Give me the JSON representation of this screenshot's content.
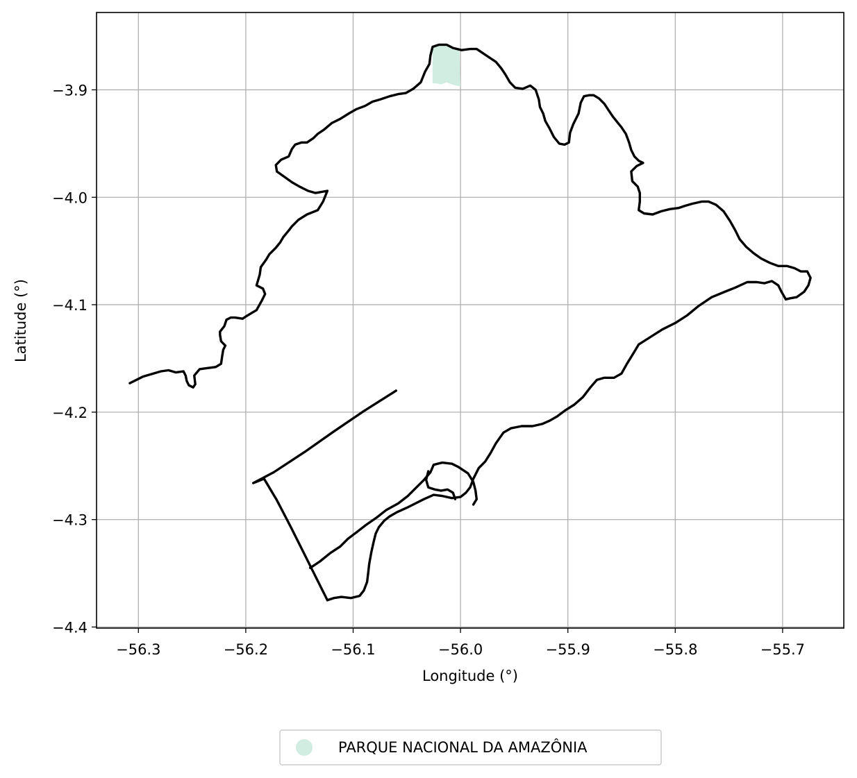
{
  "chart_data": {
    "type": "map",
    "xlabel": "Longitude (°)",
    "ylabel": "Latitude (°)",
    "xlim": [
      -56.339,
      -55.643
    ],
    "ylim": [
      -4.401,
      -3.828
    ],
    "xticks": [
      -56.3,
      -56.2,
      -56.1,
      -56.0,
      -55.9,
      -55.8,
      -55.7
    ],
    "xtick_labels": [
      "−56.3",
      "−56.2",
      "−56.1",
      "−56.0",
      "−55.9",
      "−55.8",
      "−55.7"
    ],
    "yticks": [
      -3.9,
      -4.0,
      -4.1,
      -4.2,
      -4.3,
      -4.4
    ],
    "ytick_labels": [
      "−3.9",
      "−4.0",
      "−4.1",
      "−4.2",
      "−4.3",
      "−4.4"
    ],
    "grid": true,
    "legend": {
      "placement": "bottom-center",
      "entries": [
        {
          "label": "PARQUE NACIONAL DA AMAZÔNIA",
          "color": "#d1ece0",
          "marker": "circle"
        }
      ]
    },
    "boundary": {
      "stroke": "#000000",
      "outer": [
        [
          -56.308,
          -4.173
        ],
        [
          -56.296,
          -4.167
        ],
        [
          -56.279,
          -4.162
        ],
        [
          -56.272,
          -4.161
        ],
        [
          -56.265,
          -4.163
        ],
        [
          -56.258,
          -4.162
        ],
        [
          -56.256,
          -4.166
        ],
        [
          -56.255,
          -4.171
        ],
        [
          -56.253,
          -4.175
        ],
        [
          -56.249,
          -4.177
        ],
        [
          -56.247,
          -4.174
        ],
        [
          -56.248,
          -4.166
        ],
        [
          -56.243,
          -4.16
        ],
        [
          -56.236,
          -4.159
        ],
        [
          -56.228,
          -4.158
        ],
        [
          -56.223,
          -4.155
        ],
        [
          -56.222,
          -4.148
        ],
        [
          -56.221,
          -4.142
        ],
        [
          -56.219,
          -4.138
        ],
        [
          -56.223,
          -4.134
        ],
        [
          -56.224,
          -4.128
        ],
        [
          -56.224,
          -4.125
        ],
        [
          -56.22,
          -4.12
        ],
        [
          -56.218,
          -4.114
        ],
        [
          -56.214,
          -4.112
        ],
        [
          -56.21,
          -4.112
        ],
        [
          -56.203,
          -4.113
        ],
        [
          -56.2,
          -4.111
        ],
        [
          -56.195,
          -4.108
        ],
        [
          -56.19,
          -4.105
        ],
        [
          -56.185,
          -4.096
        ],
        [
          -56.182,
          -4.09
        ],
        [
          -56.184,
          -4.085
        ],
        [
          -56.19,
          -4.082
        ],
        [
          -56.187,
          -4.072
        ],
        [
          -56.186,
          -4.065
        ],
        [
          -56.181,
          -4.058
        ],
        [
          -56.178,
          -4.053
        ],
        [
          -56.172,
          -4.047
        ],
        [
          -56.168,
          -4.042
        ],
        [
          -56.165,
          -4.037
        ],
        [
          -56.16,
          -4.031
        ],
        [
          -56.157,
          -4.027
        ],
        [
          -56.151,
          -4.021
        ],
        [
          -56.143,
          -4.016
        ],
        [
          -56.133,
          -4.012
        ],
        [
          -56.128,
          -4.004
        ],
        [
          -56.124,
          -3.994
        ],
        [
          -56.135,
          -3.996
        ],
        [
          -56.142,
          -3.994
        ],
        [
          -56.15,
          -3.99
        ],
        [
          -56.157,
          -3.986
        ],
        [
          -56.164,
          -3.981
        ],
        [
          -56.171,
          -3.976
        ],
        [
          -56.172,
          -3.97
        ],
        [
          -56.167,
          -3.965
        ],
        [
          -56.16,
          -3.962
        ],
        [
          -56.157,
          -3.955
        ],
        [
          -56.154,
          -3.951
        ],
        [
          -56.148,
          -3.949
        ],
        [
          -56.143,
          -3.949
        ],
        [
          -56.137,
          -3.945
        ],
        [
          -56.133,
          -3.941
        ],
        [
          -56.127,
          -3.937
        ],
        [
          -56.12,
          -3.931
        ],
        [
          -56.112,
          -3.927
        ],
        [
          -56.104,
          -3.922
        ],
        [
          -56.097,
          -3.918
        ],
        [
          -56.089,
          -3.915
        ],
        [
          -56.082,
          -3.911
        ],
        [
          -56.075,
          -3.909
        ],
        [
          -56.066,
          -3.906
        ],
        [
          -56.058,
          -3.904
        ],
        [
          -56.051,
          -3.903
        ],
        [
          -56.044,
          -3.899
        ],
        [
          -56.037,
          -3.893
        ],
        [
          -56.033,
          -3.883
        ],
        [
          -56.029,
          -3.876
        ],
        [
          -56.028,
          -3.868
        ],
        [
          -56.026,
          -3.86
        ],
        [
          -56.02,
          -3.858
        ],
        [
          -56.013,
          -3.858
        ],
        [
          -56.007,
          -3.861
        ],
        [
          -55.999,
          -3.863
        ],
        [
          -55.991,
          -3.862
        ],
        [
          -55.985,
          -3.862
        ],
        [
          -55.979,
          -3.866
        ],
        [
          -55.973,
          -3.87
        ],
        [
          -55.967,
          -3.874
        ],
        [
          -55.962,
          -3.88
        ],
        [
          -55.958,
          -3.886
        ],
        [
          -55.954,
          -3.893
        ],
        [
          -55.949,
          -3.898
        ],
        [
          -55.942,
          -3.899
        ],
        [
          -55.935,
          -3.896
        ],
        [
          -55.93,
          -3.9
        ],
        [
          -55.927,
          -3.909
        ],
        [
          -55.926,
          -3.916
        ],
        [
          -55.923,
          -3.922
        ],
        [
          -55.921,
          -3.929
        ],
        [
          -55.917,
          -3.936
        ],
        [
          -55.913,
          -3.944
        ],
        [
          -55.908,
          -3.95
        ],
        [
          -55.903,
          -3.951
        ],
        [
          -55.899,
          -3.949
        ],
        [
          -55.898,
          -3.94
        ],
        [
          -55.895,
          -3.932
        ],
        [
          -55.89,
          -3.922
        ],
        [
          -55.888,
          -3.912
        ],
        [
          -55.885,
          -3.906
        ],
        [
          -55.88,
          -3.905
        ],
        [
          -55.876,
          -3.905
        ],
        [
          -55.871,
          -3.908
        ],
        [
          -55.866,
          -3.913
        ],
        [
          -55.862,
          -3.919
        ],
        [
          -55.858,
          -3.925
        ],
        [
          -55.854,
          -3.93
        ],
        [
          -55.85,
          -3.935
        ],
        [
          -55.846,
          -3.941
        ],
        [
          -55.843,
          -3.949
        ],
        [
          -55.841,
          -3.956
        ],
        [
          -55.838,
          -3.962
        ],
        [
          -55.834,
          -3.966
        ],
        [
          -55.83,
          -3.968
        ],
        [
          -55.836,
          -3.971
        ],
        [
          -55.841,
          -3.976
        ],
        [
          -55.84,
          -3.985
        ],
        [
          -55.835,
          -3.99
        ],
        [
          -55.833,
          -3.996
        ],
        [
          -55.833,
          -4.004
        ],
        [
          -55.834,
          -4.012
        ],
        [
          -55.829,
          -4.015
        ],
        [
          -55.821,
          -4.016
        ],
        [
          -55.813,
          -4.013
        ],
        [
          -55.805,
          -4.011
        ],
        [
          -55.797,
          -4.01
        ],
        [
          -55.791,
          -4.008
        ],
        [
          -55.784,
          -4.006
        ],
        [
          -55.775,
          -4.004
        ],
        [
          -55.769,
          -4.004
        ],
        [
          -55.762,
          -4.007
        ],
        [
          -55.755,
          -4.013
        ],
        [
          -55.749,
          -4.022
        ],
        [
          -55.744,
          -4.031
        ],
        [
          -55.74,
          -4.039
        ],
        [
          -55.734,
          -4.046
        ],
        [
          -55.727,
          -4.052
        ],
        [
          -55.72,
          -4.057
        ],
        [
          -55.712,
          -4.061
        ],
        [
          -55.704,
          -4.064
        ],
        [
          -55.696,
          -4.064
        ],
        [
          -55.689,
          -4.066
        ],
        [
          -55.683,
          -4.069
        ],
        [
          -55.677,
          -4.069
        ],
        [
          -55.674,
          -4.075
        ],
        [
          -55.676,
          -4.082
        ],
        [
          -55.68,
          -4.088
        ],
        [
          -55.687,
          -4.093
        ],
        [
          -55.693,
          -4.094
        ],
        [
          -55.697,
          -4.095
        ]
      ],
      "southeast": [
        [
          -55.697,
          -4.095
        ],
        [
          -55.701,
          -4.088
        ],
        [
          -55.704,
          -4.082
        ],
        [
          -55.71,
          -4.078
        ],
        [
          -55.717,
          -4.08
        ],
        [
          -55.724,
          -4.079
        ],
        [
          -55.733,
          -4.079
        ],
        [
          -55.744,
          -4.084
        ],
        [
          -55.754,
          -4.088
        ],
        [
          -55.766,
          -4.093
        ],
        [
          -55.778,
          -4.101
        ],
        [
          -55.789,
          -4.11
        ],
        [
          -55.8,
          -4.117
        ],
        [
          -55.812,
          -4.123
        ],
        [
          -55.823,
          -4.13
        ],
        [
          -55.834,
          -4.137
        ],
        [
          -55.84,
          -4.147
        ],
        [
          -55.845,
          -4.155
        ],
        [
          -55.85,
          -4.164
        ],
        [
          -55.857,
          -4.168
        ],
        [
          -55.866,
          -4.168
        ],
        [
          -55.873,
          -4.17
        ],
        [
          -55.879,
          -4.177
        ],
        [
          -55.886,
          -4.186
        ],
        [
          -55.894,
          -4.193
        ],
        [
          -55.902,
          -4.198
        ],
        [
          -55.91,
          -4.204
        ],
        [
          -55.917,
          -4.208
        ],
        [
          -55.924,
          -4.211
        ],
        [
          -55.933,
          -4.213
        ],
        [
          -55.943,
          -4.213
        ],
        [
          -55.953,
          -4.215
        ],
        [
          -55.96,
          -4.219
        ],
        [
          -55.967,
          -4.229
        ],
        [
          -55.972,
          -4.238
        ],
        [
          -55.977,
          -4.246
        ],
        [
          -55.983,
          -4.252
        ],
        [
          -55.988,
          -4.262
        ],
        [
          -55.991,
          -4.27
        ],
        [
          -55.995,
          -4.275
        ],
        [
          -56.0,
          -4.279
        ],
        [
          -56.008,
          -4.28
        ],
        [
          -56.017,
          -4.278
        ],
        [
          -56.025,
          -4.277
        ],
        [
          -56.034,
          -4.281
        ],
        [
          -56.042,
          -4.285
        ],
        [
          -56.05,
          -4.289
        ],
        [
          -56.059,
          -4.293
        ],
        [
          -56.066,
          -4.297
        ],
        [
          -56.071,
          -4.301
        ],
        [
          -56.076,
          -4.307
        ],
        [
          -56.079,
          -4.313
        ],
        [
          -56.081,
          -4.321
        ],
        [
          -56.083,
          -4.33
        ],
        [
          -56.085,
          -4.341
        ],
        [
          -56.086,
          -4.35
        ],
        [
          -56.087,
          -4.358
        ],
        [
          -56.09,
          -4.366
        ],
        [
          -56.094,
          -4.371
        ],
        [
          -56.102,
          -4.373
        ],
        [
          -56.111,
          -4.372
        ],
        [
          -56.118,
          -4.373
        ],
        [
          -56.124,
          -4.375
        ]
      ],
      "west": [
        [
          -56.124,
          -4.375
        ],
        [
          -56.134,
          -4.355
        ],
        [
          -56.146,
          -4.331
        ],
        [
          -56.158,
          -4.307
        ],
        [
          -56.171,
          -4.282
        ],
        [
          -56.183,
          -4.262
        ],
        [
          -56.193,
          -4.266
        ],
        [
          -56.174,
          -4.256
        ],
        [
          -56.145,
          -4.237
        ],
        [
          -56.118,
          -4.218
        ],
        [
          -56.09,
          -4.199
        ],
        [
          -56.06,
          -4.18
        ]
      ],
      "inner": [
        [
          -56.14,
          -4.345
        ],
        [
          -56.131,
          -4.339
        ],
        [
          -56.121,
          -4.331
        ],
        [
          -56.112,
          -4.325
        ],
        [
          -56.105,
          -4.318
        ],
        [
          -56.097,
          -4.312
        ],
        [
          -56.088,
          -4.305
        ],
        [
          -56.078,
          -4.298
        ],
        [
          -56.069,
          -4.291
        ],
        [
          -56.058,
          -4.285
        ],
        [
          -56.049,
          -4.278
        ],
        [
          -56.041,
          -4.27
        ],
        [
          -56.034,
          -4.263
        ],
        [
          -56.028,
          -4.256
        ],
        [
          -56.025,
          -4.249
        ],
        [
          -56.017,
          -4.247
        ],
        [
          -56.008,
          -4.248
        ],
        [
          -56.002,
          -4.251
        ],
        [
          -55.993,
          -4.257
        ],
        [
          -55.988,
          -4.265
        ],
        [
          -55.986,
          -4.273
        ],
        [
          -55.985,
          -4.281
        ],
        [
          -55.988,
          -4.286
        ]
      ],
      "loop": [
        [
          -56.03,
          -4.255
        ],
        [
          -56.032,
          -4.263
        ],
        [
          -56.03,
          -4.27
        ],
        [
          -56.024,
          -4.272
        ],
        [
          -56.018,
          -4.273
        ],
        [
          -56.012,
          -4.272
        ],
        [
          -56.007,
          -4.275
        ],
        [
          -56.005,
          -4.281
        ]
      ]
    },
    "park_area": {
      "label": "PARQUE NACIONAL DA AMAZÔNIA",
      "fill": "#d1ece0",
      "coords": [
        [
          -56.026,
          -3.861
        ],
        [
          -56.02,
          -3.858
        ],
        [
          -56.012,
          -3.858
        ],
        [
          -56.006,
          -3.861
        ],
        [
          -56.001,
          -3.863
        ],
        [
          -56.0,
          -3.897
        ],
        [
          -56.004,
          -3.896
        ],
        [
          -56.008,
          -3.895
        ],
        [
          -56.013,
          -3.893
        ],
        [
          -56.018,
          -3.895
        ],
        [
          -56.022,
          -3.894
        ],
        [
          -56.026,
          -3.894
        ],
        [
          -56.026,
          -3.88
        ]
      ]
    }
  }
}
